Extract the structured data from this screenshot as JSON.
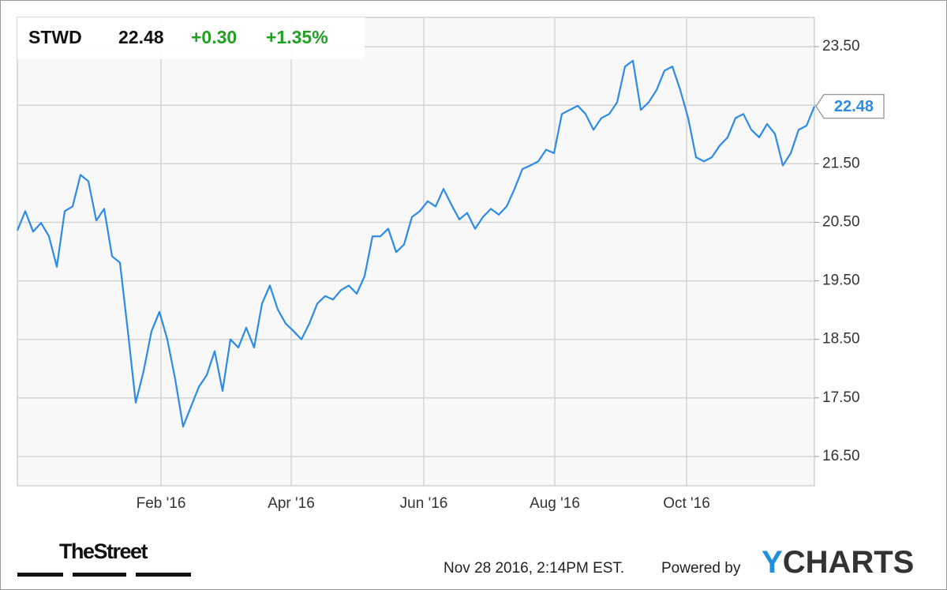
{
  "chart_data": {
    "type": "line",
    "ticker": "STWD",
    "price": 22.48,
    "change": "+0.30",
    "change_percent": "+1.35%",
    "timestamp": "Nov 28 2016, 2:14PM EST.",
    "powered_by": "Powered by",
    "brand": "YCHARTS",
    "source_logo": "TheStreet",
    "xlim": [
      0,
      101
    ],
    "xticks": [
      {
        "value": 18.2,
        "label": "Feb '16"
      },
      {
        "value": 34.7,
        "label": "Apr '16"
      },
      {
        "value": 51.5,
        "label": "Jun '16"
      },
      {
        "value": 68.1,
        "label": "Aug '16"
      },
      {
        "value": 84.8,
        "label": "Oct '16"
      }
    ],
    "ylim": [
      16,
      24
    ],
    "yticks": [
      {
        "value": 16.5,
        "label": "16.50"
      },
      {
        "value": 17.5,
        "label": "17.50"
      },
      {
        "value": 18.5,
        "label": "18.50"
      },
      {
        "value": 19.5,
        "label": "19.50"
      },
      {
        "value": 20.5,
        "label": "20.50"
      },
      {
        "value": 21.5,
        "label": "21.50"
      },
      {
        "value": 22.5,
        "label": "22.50"
      },
      {
        "value": 23.5,
        "label": "23.50"
      }
    ],
    "grid": true,
    "series": [
      {
        "name": "STWD",
        "color": "#2b8be6",
        "values": [
          20.36,
          20.69,
          20.34,
          20.49,
          20.26,
          19.74,
          20.69,
          20.77,
          21.31,
          21.2,
          20.53,
          20.73,
          19.92,
          19.81,
          18.64,
          17.42,
          17.96,
          18.64,
          18.97,
          18.5,
          17.82,
          17.01,
          17.35,
          17.69,
          17.89,
          18.3,
          17.62,
          18.5,
          18.36,
          18.7,
          18.36,
          19.11,
          19.42,
          19.01,
          18.77,
          18.64,
          18.5,
          18.77,
          19.11,
          19.24,
          19.18,
          19.34,
          19.42,
          19.28,
          19.58,
          20.26,
          20.26,
          20.39,
          19.99,
          20.12,
          20.59,
          20.69,
          20.86,
          20.77,
          21.07,
          20.8,
          20.55,
          20.66,
          20.39,
          20.59,
          20.73,
          20.63,
          20.77,
          21.07,
          21.41,
          21.47,
          21.54,
          21.74,
          21.68,
          22.35,
          22.42,
          22.49,
          22.35,
          22.08,
          22.28,
          22.35,
          22.55,
          23.16,
          23.26,
          22.42,
          22.55,
          22.76,
          23.09,
          23.16,
          22.76,
          22.28,
          21.61,
          21.54,
          21.61,
          21.81,
          21.95,
          22.28,
          22.35,
          22.08,
          21.95,
          22.18,
          22.01,
          21.47,
          21.68,
          22.08,
          22.15,
          22.48
        ]
      }
    ]
  }
}
